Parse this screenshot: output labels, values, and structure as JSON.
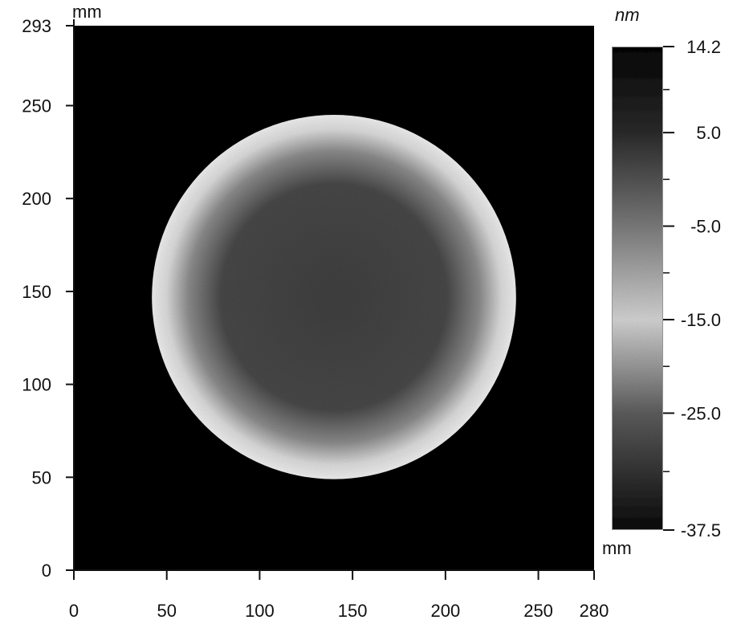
{
  "chart_data": {
    "type": "heatmap",
    "description_of_values": "surface height map, value in nm",
    "x_axis": {
      "unit": "mm",
      "range": [
        0,
        280
      ],
      "ticks": [
        0,
        50,
        100,
        150,
        200,
        250,
        280
      ]
    },
    "y_axis": {
      "unit": "mm",
      "range": [
        0,
        293
      ],
      "ticks": [
        0,
        50,
        100,
        150,
        200,
        250,
        293
      ]
    },
    "colorbar": {
      "unit": "nm",
      "range": [
        -37.5,
        14.2
      ],
      "ticks": [
        14.2,
        5.0,
        -5.0,
        -15.0,
        -25.0,
        -37.5
      ],
      "tick_labels": [
        "14.2",
        "5.0",
        "-5.0",
        "-15.0",
        "-25.0",
        "-37.5"
      ],
      "gradient": [
        {
          "value": 14.2,
          "color": "#050505"
        },
        {
          "value": 5.0,
          "color": "#2a2a2a"
        },
        {
          "value": -5.0,
          "color": "#7a7a7a"
        },
        {
          "value": -15.0,
          "color": "#d2d2d2"
        },
        {
          "value": -25.0,
          "color": "#5c5c5c"
        },
        {
          "value": -37.5,
          "color": "#0a0a0a"
        }
      ]
    },
    "feature": {
      "shape": "circle",
      "center_mm": [
        140,
        147
      ],
      "radius_mm": 98,
      "rim_color": "#e6e6e6",
      "interior_color": "#3a3a3a",
      "background_color": "#050505"
    }
  }
}
